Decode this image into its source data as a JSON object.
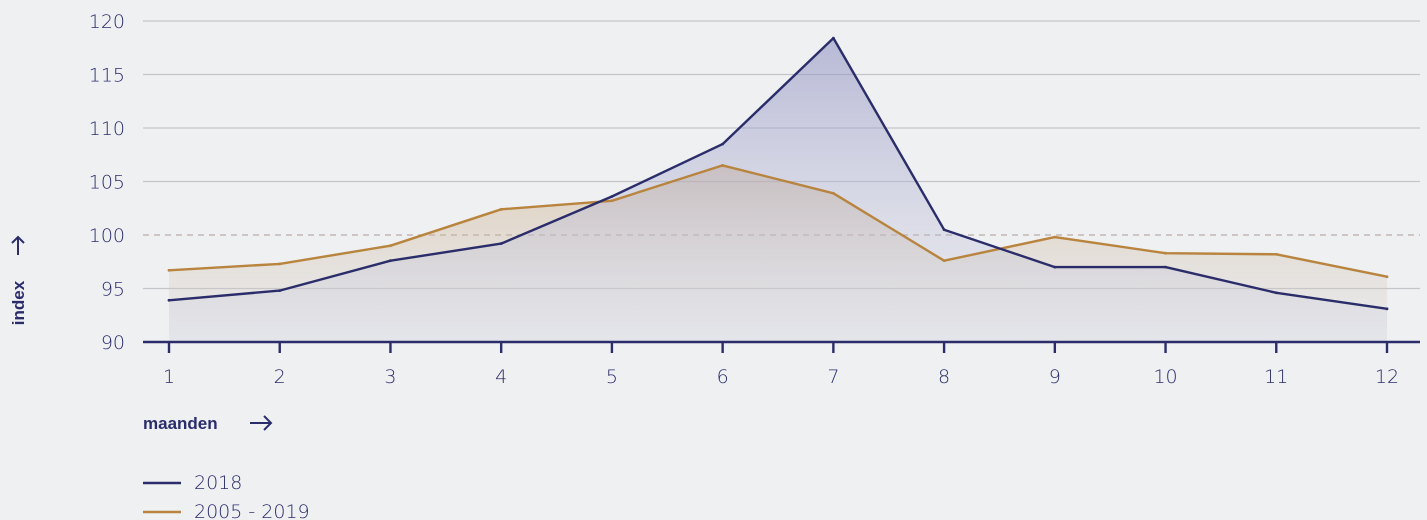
{
  "chart_data": {
    "type": "area",
    "x": [
      1,
      2,
      3,
      4,
      5,
      6,
      7,
      8,
      9,
      10,
      11,
      12
    ],
    "xlabel": "maanden",
    "ylabel": "index",
    "ylim": [
      90,
      120
    ],
    "yticks": [
      90,
      95,
      100,
      105,
      110,
      115,
      120
    ],
    "reference_line": 100,
    "grid": true,
    "legend_position": "bottom-left",
    "series": [
      {
        "name": "2018",
        "color": "#2b2d6b",
        "values": [
          93.9,
          94.8,
          97.6,
          99.2,
          103.6,
          108.5,
          118.4,
          100.5,
          97.0,
          97.0,
          94.6,
          93.1
        ]
      },
      {
        "name": "2005 - 2019",
        "color": "#b8843e",
        "values": [
          96.7,
          97.3,
          99.0,
          102.4,
          103.2,
          106.5,
          103.9,
          97.6,
          99.8,
          98.3,
          98.2,
          96.1
        ]
      }
    ]
  }
}
